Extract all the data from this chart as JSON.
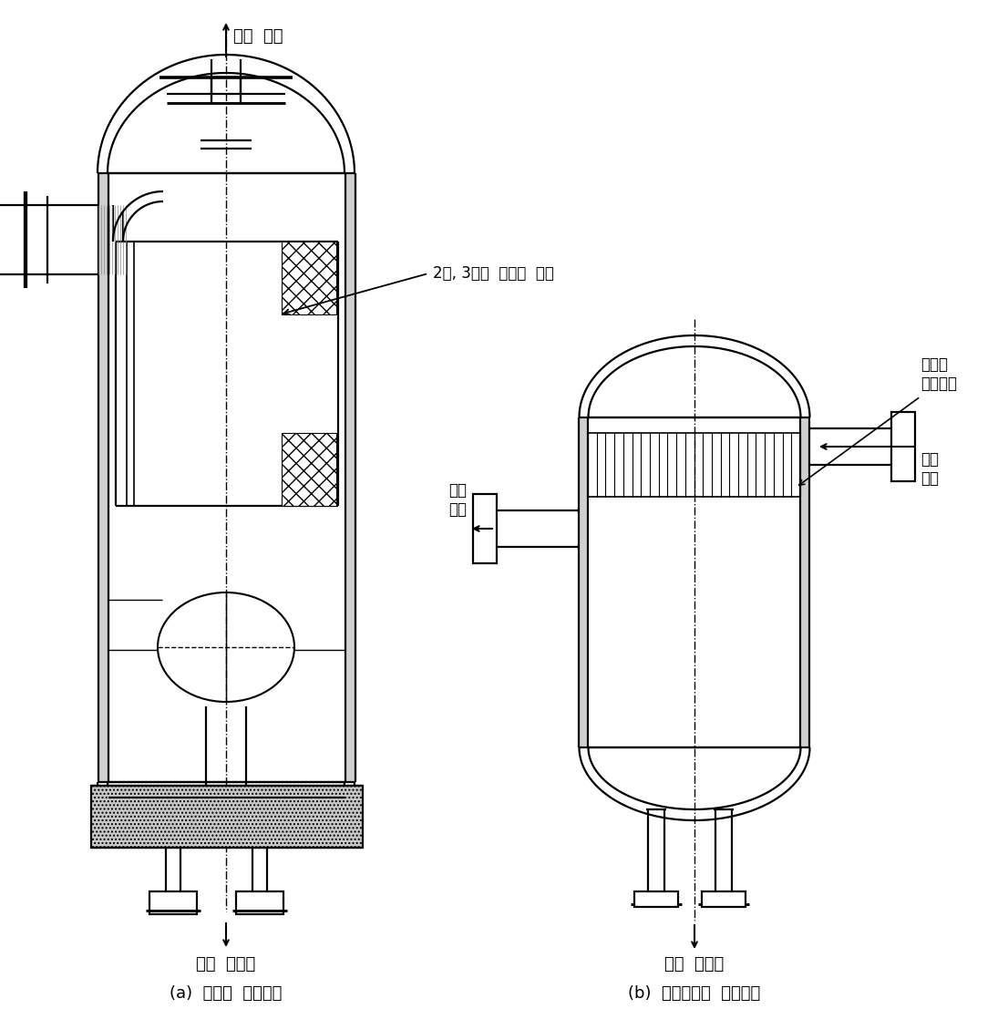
{
  "bg_color": "#ffffff",
  "line_color": "#000000",
  "label_a": "(a)  철망형  유분리기",
  "label_b": "(b)  사이클론형  유분리기",
  "annotation_mesh": "2중, 3중의  원통형  철망",
  "label_coolant_out_a": "냉매  출구",
  "label_oil_drain_a": "오일  드레인",
  "label_coolant_out_b": "냉매\n출구",
  "label_coolant_in_b": "냉매\n입구",
  "label_cyclone_b": "소형의\n사이클론",
  "label_oil_drain_b": "오일  드레인"
}
